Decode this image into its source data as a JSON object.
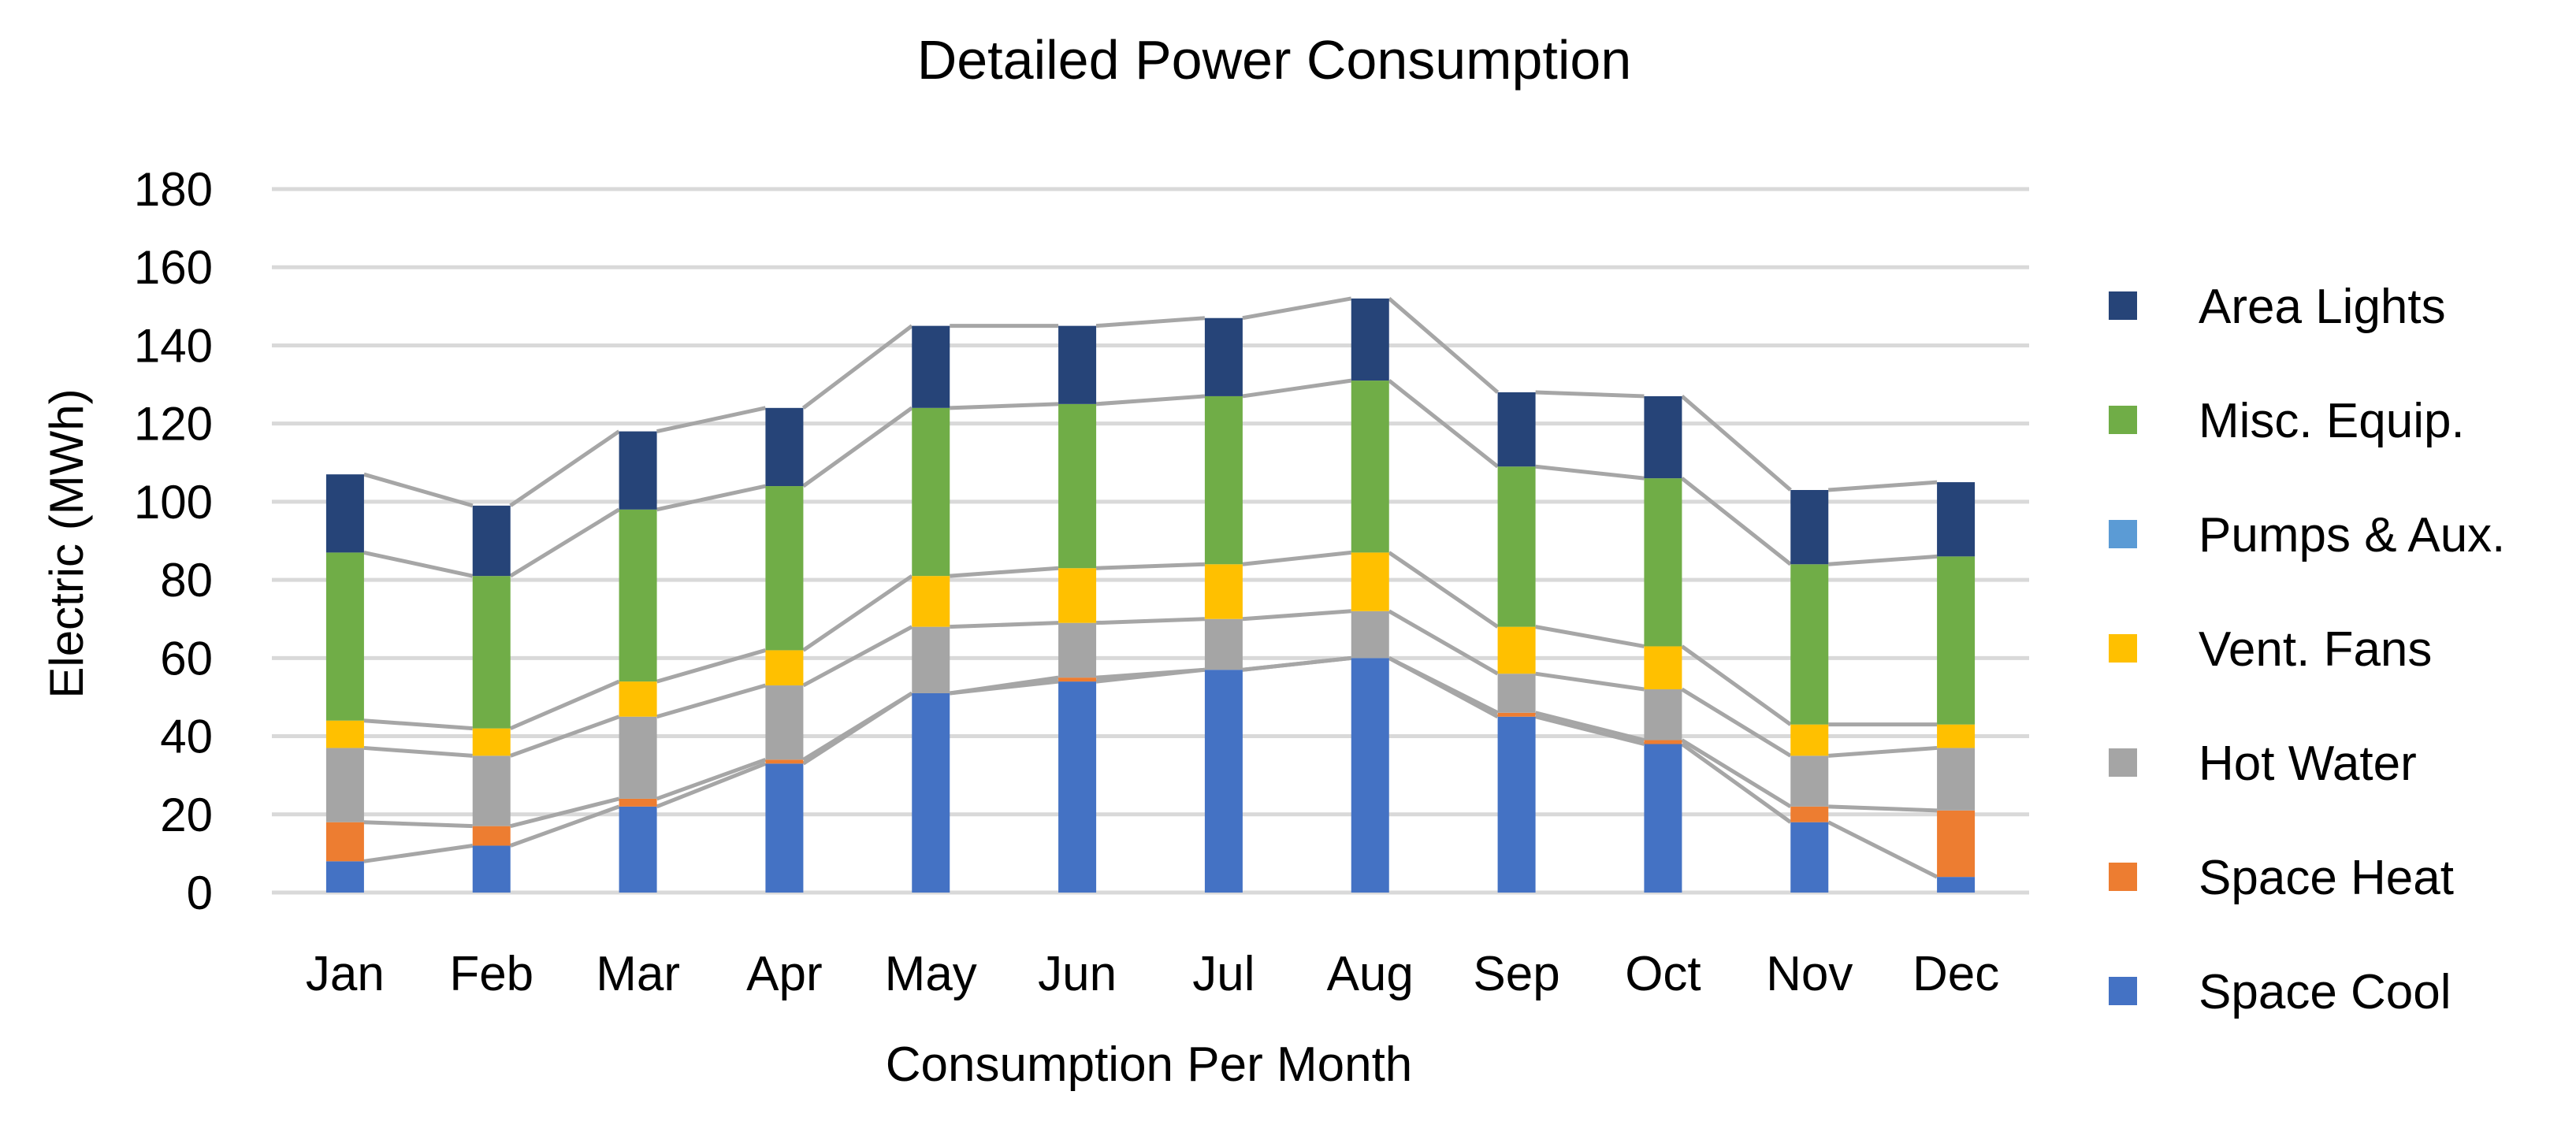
{
  "chart_data": {
    "type": "bar",
    "stacked": true,
    "title": "Detailed Power Consumption",
    "xlabel": "Consumption Per Month",
    "ylabel": "Electric (MWh)",
    "ylim": [
      0,
      180
    ],
    "yticks": [
      0,
      20,
      40,
      60,
      80,
      100,
      120,
      140,
      160,
      180
    ],
    "grid": true,
    "legend_position": "right",
    "series_lines": true,
    "categories": [
      "Jan",
      "Feb",
      "Mar",
      "Apr",
      "May",
      "Jun",
      "Jul",
      "Aug",
      "Sep",
      "Oct",
      "Nov",
      "Dec"
    ],
    "series": [
      {
        "name": "Space Cool",
        "color": "#4472C4",
        "values": [
          8,
          12,
          22,
          33,
          51,
          54,
          57,
          60,
          45,
          38,
          18,
          4
        ]
      },
      {
        "name": "Space Heat",
        "color": "#ED7D31",
        "values": [
          10,
          5,
          2,
          1,
          0,
          1,
          0,
          0,
          1,
          1,
          4,
          17
        ]
      },
      {
        "name": "Hot Water",
        "color": "#A5A5A5",
        "values": [
          19,
          18,
          21,
          19,
          17,
          14,
          13,
          12,
          10,
          13,
          13,
          16
        ]
      },
      {
        "name": "Vent. Fans",
        "color": "#FFC000",
        "values": [
          7,
          7,
          9,
          9,
          13,
          14,
          14,
          15,
          12,
          11,
          8,
          6
        ]
      },
      {
        "name": "Pumps & Aux.",
        "color": "#5B9BD5",
        "values": [
          0,
          0,
          0,
          0,
          0,
          0,
          0,
          0,
          0,
          0,
          0,
          0
        ]
      },
      {
        "name": "Misc. Equip.",
        "color": "#70AD47",
        "values": [
          43,
          39,
          44,
          42,
          43,
          42,
          43,
          44,
          41,
          43,
          41,
          43
        ]
      },
      {
        "name": "Area Lights",
        "color": "#264478",
        "values": [
          20,
          18,
          20,
          20,
          21,
          20,
          20,
          21,
          19,
          21,
          19,
          19
        ]
      }
    ],
    "legend_order": [
      "Area Lights",
      "Misc. Equip.",
      "Pumps & Aux.",
      "Vent. Fans",
      "Hot Water",
      "Space Heat",
      "Space Cool"
    ]
  }
}
